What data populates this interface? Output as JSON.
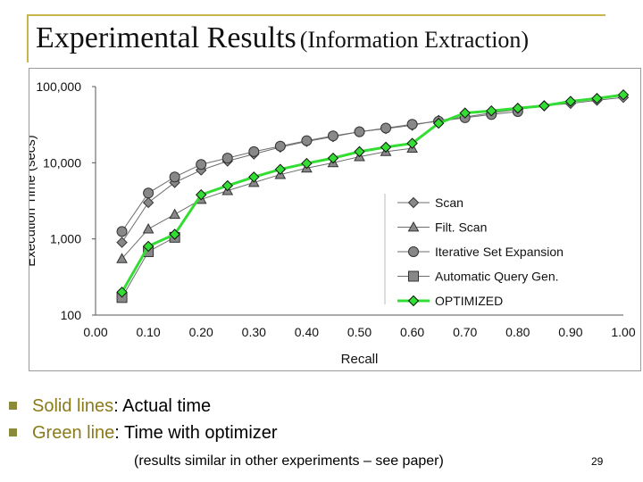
{
  "slide": {
    "title_main": "Experimental Results",
    "title_sub": "(Information Extraction)",
    "bullets": [
      {
        "highlight": "Solid lines",
        "rest": ": Actual time"
      },
      {
        "highlight": "Green line",
        "rest": ": Time with optimizer"
      }
    ],
    "note": "(results similar in other experiments – see paper)",
    "page_number": "29"
  },
  "colors": {
    "title_rule": "#c8b64a",
    "bullet_square": "#8a8a3a",
    "bullet_highlight": "#8a7a1a",
    "series_gray": "#6e6e6e",
    "series_green": "#33dd33",
    "marker_gray": "#888888"
  },
  "chart_data": {
    "type": "line",
    "xlabel": "Recall",
    "ylabel": "Execution Time (secs)",
    "x_scale": "linear",
    "y_scale": "log",
    "xlim": [
      0.0,
      1.0
    ],
    "ylim": [
      100,
      100000
    ],
    "x_ticks": [
      "0.00",
      "0.10",
      "0.20",
      "0.30",
      "0.40",
      "0.50",
      "0.60",
      "0.70",
      "0.80",
      "0.90",
      "1.00"
    ],
    "y_ticks": [
      {
        "value": 100,
        "label": "100"
      },
      {
        "value": 1000,
        "label": "1,000"
      },
      {
        "value": 10000,
        "label": "10,000"
      },
      {
        "value": 100000,
        "label": "100,000"
      }
    ],
    "grid": false,
    "legend_position": "center-right",
    "series": [
      {
        "name": "Scan",
        "marker": "diamond",
        "x": [
          0.05,
          0.1,
          0.15,
          0.2,
          0.25,
          0.3,
          0.35,
          0.4,
          0.45,
          0.5,
          0.55,
          0.6,
          0.65,
          0.7,
          0.75,
          0.8,
          0.85,
          0.9,
          0.95,
          1.0
        ],
        "y": [
          900,
          3000,
          5500,
          8000,
          10500,
          13000,
          16000,
          19000,
          22000,
          25500,
          28000,
          31000,
          36000,
          40000,
          45000,
          50000,
          56000,
          60000,
          66000,
          72000
        ]
      },
      {
        "name": "Filt. Scan",
        "marker": "triangle",
        "x": [
          0.05,
          0.1,
          0.15,
          0.2,
          0.25,
          0.3,
          0.35,
          0.4,
          0.45,
          0.5,
          0.55,
          0.6
        ],
        "y": [
          550,
          1350,
          2100,
          3300,
          4300,
          5500,
          7000,
          8500,
          10000,
          12000,
          14000,
          15500
        ]
      },
      {
        "name": "Iterative Set Expansion",
        "marker": "circle",
        "x": [
          0.05,
          0.1,
          0.15,
          0.2,
          0.25,
          0.3,
          0.35,
          0.4,
          0.45,
          0.5,
          0.55,
          0.6,
          0.65,
          0.7,
          0.75,
          0.8
        ],
        "y": [
          1250,
          4000,
          6500,
          9500,
          11500,
          14000,
          16500,
          19500,
          22500,
          25500,
          28500,
          32000,
          35000,
          39000,
          43000,
          47000
        ]
      },
      {
        "name": "Automatic Query Gen.",
        "marker": "square",
        "x": [
          0.05,
          0.1,
          0.15
        ],
        "y": [
          170,
          680,
          1050
        ]
      },
      {
        "name": "OPTIMIZED",
        "marker": "diamond",
        "x": [
          0.05,
          0.1,
          0.15,
          0.2,
          0.25,
          0.3,
          0.35,
          0.4,
          0.45,
          0.5,
          0.55,
          0.6,
          0.65,
          0.7,
          0.75,
          0.8,
          0.85,
          0.9,
          0.95,
          1.0
        ],
        "y": [
          200,
          800,
          1150,
          3800,
          5000,
          6500,
          8200,
          9800,
          11500,
          14000,
          16000,
          18000,
          33000,
          45000,
          48000,
          52000,
          56000,
          64000,
          70000,
          78000
        ]
      }
    ]
  }
}
